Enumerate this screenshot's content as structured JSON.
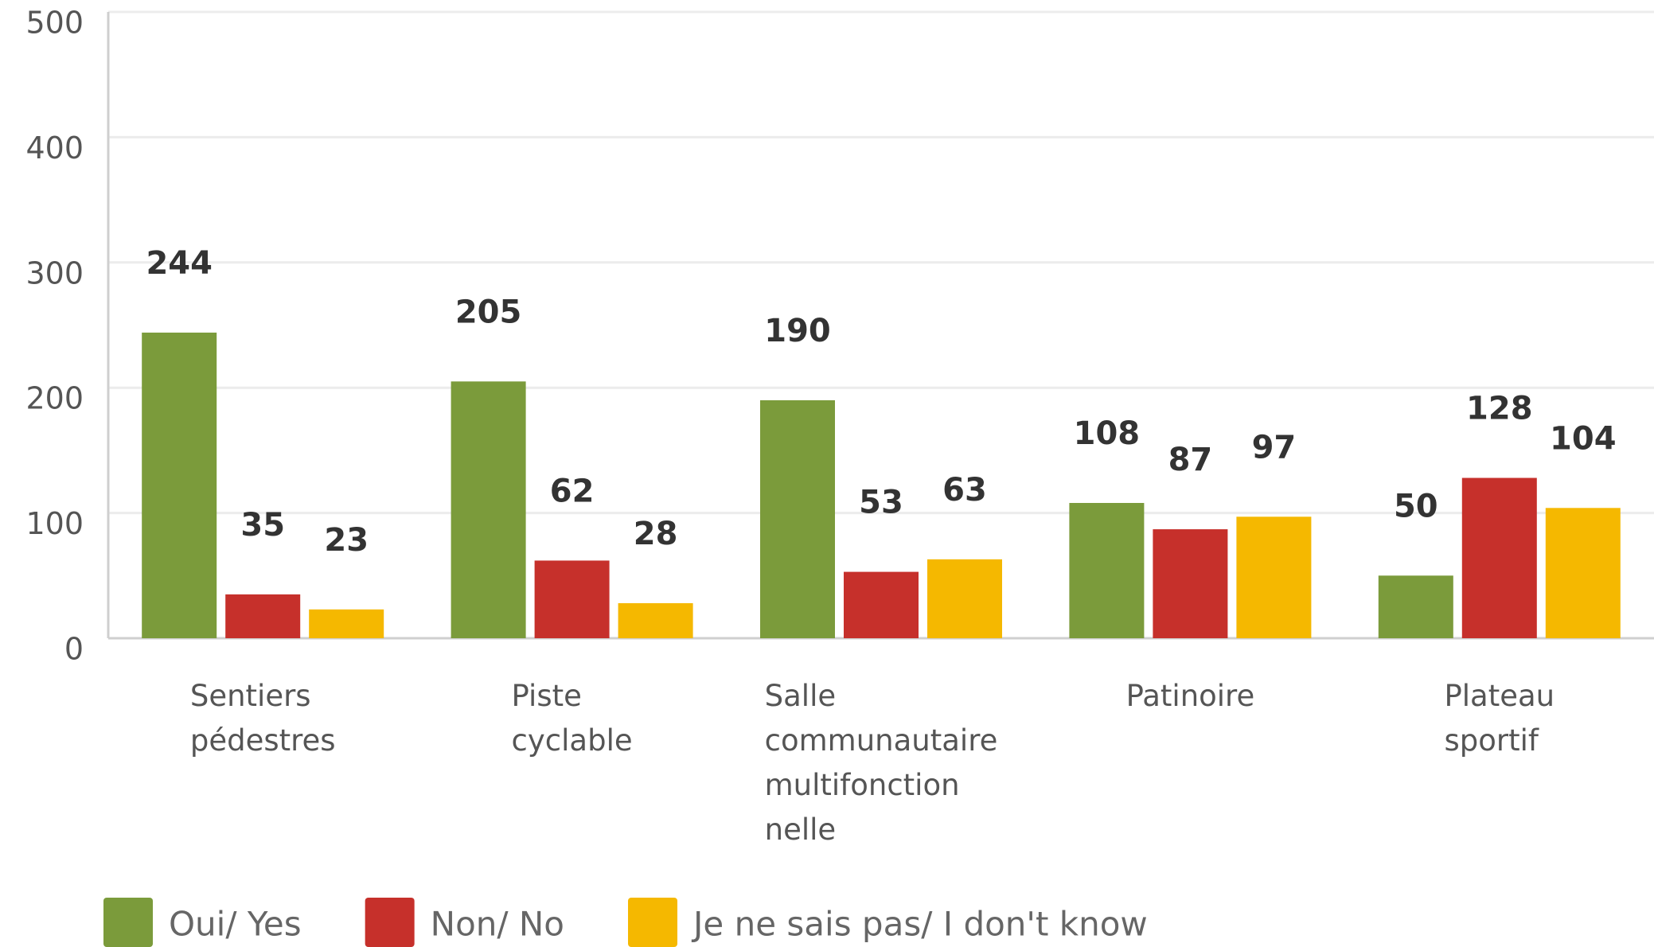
{
  "chart_data": {
    "type": "bar",
    "categories": [
      "Sentiers pédestres",
      "Piste cyclable",
      "Salle communautaire multifonction nelle",
      "Patinoire",
      "Plateau sportif"
    ],
    "series": [
      {
        "name": "Oui/ Yes",
        "color": "#7b9b3b",
        "values": [
          244,
          205,
          190,
          108,
          50
        ]
      },
      {
        "name": "Non/ No",
        "color": "#c6302b",
        "values": [
          35,
          62,
          53,
          87,
          128
        ]
      },
      {
        "name": "Je ne sais pas/ I don't know",
        "color": "#f5b800",
        "values": [
          23,
          28,
          63,
          97,
          104
        ]
      }
    ],
    "ylim": [
      0,
      500
    ],
    "yticks": [
      0,
      100,
      200,
      300,
      400,
      500
    ],
    "grid": true,
    "legend": "bottom"
  }
}
